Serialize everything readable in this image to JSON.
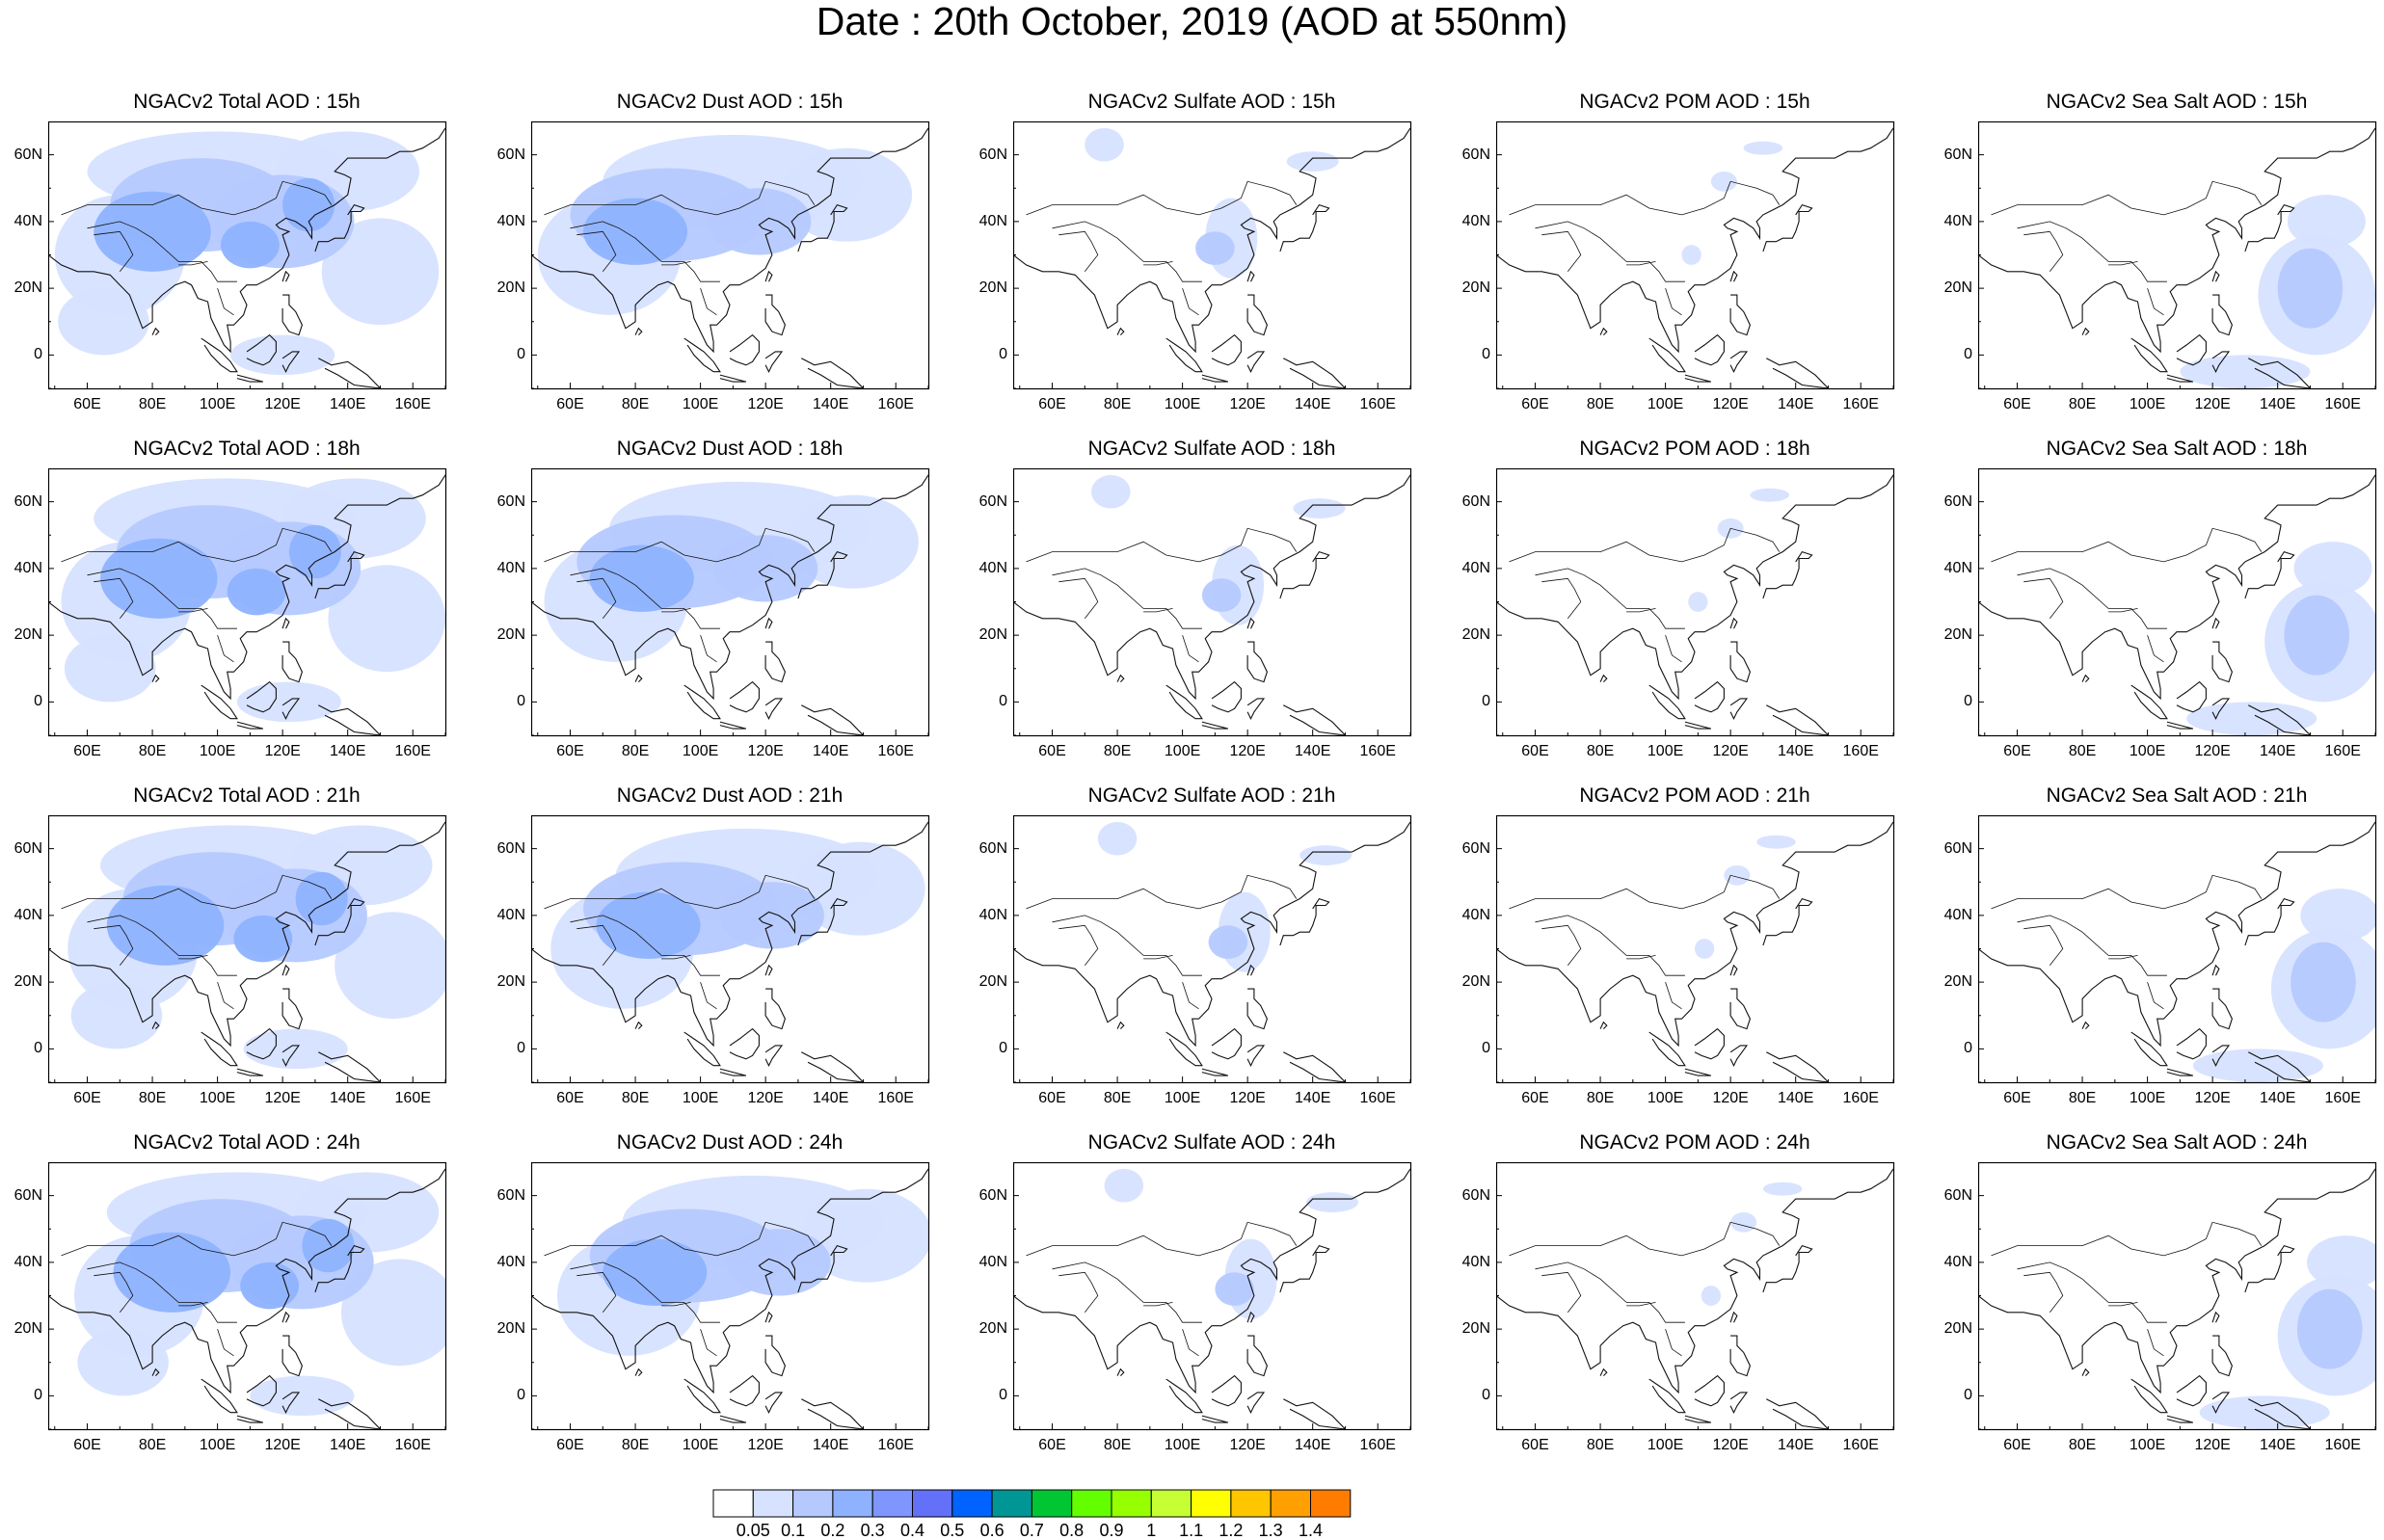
{
  "title": "Date : 20th October, 2019 (AOD at 550nm)",
  "map": {
    "lon_range": [
      48,
      170
    ],
    "lat_range": [
      -10,
      70
    ],
    "lon_ticks": [
      "60E",
      "80E",
      "100E",
      "120E",
      "140E",
      "160E"
    ],
    "lat_ticks": [
      "60N",
      "40N",
      "20N",
      "0"
    ]
  },
  "species": [
    {
      "id": "total",
      "label": "Total"
    },
    {
      "id": "dust",
      "label": "Dust"
    },
    {
      "id": "sulfate",
      "label": "Sulfate"
    },
    {
      "id": "pom",
      "label": "POM"
    },
    {
      "id": "seasalt",
      "label": "Sea Salt"
    }
  ],
  "hours": [
    "15h",
    "18h",
    "21h",
    "24h"
  ],
  "panels": [
    [
      "NGACv2 Total AOD : 15h",
      "NGACv2 Dust AOD : 15h",
      "NGACv2 Sulfate AOD : 15h",
      "NGACv2 POM AOD : 15h",
      "NGACv2 Sea Salt AOD : 15h"
    ],
    [
      "NGACv2 Total AOD : 18h",
      "NGACv2 Dust AOD : 18h",
      "NGACv2 Sulfate AOD : 18h",
      "NGACv2 POM AOD : 18h",
      "NGACv2 Sea Salt AOD : 18h"
    ],
    [
      "NGACv2 Total AOD : 21h",
      "NGACv2 Dust AOD : 21h",
      "NGACv2 Sulfate AOD : 21h",
      "NGACv2 POM AOD : 21h",
      "NGACv2 Sea Salt AOD : 21h"
    ],
    [
      "NGACv2 Total AOD : 24h",
      "NGACv2 Dust AOD : 24h",
      "NGACv2 Sulfate AOD : 24h",
      "NGACv2 POM AOD : 24h",
      "NGACv2 Sea Salt  AOD : 24h"
    ]
  ],
  "colorbar": {
    "labels": [
      "0.05",
      "0.1",
      "0.2",
      "0.3",
      "0.4",
      "0.5",
      "0.6",
      "0.7",
      "0.8",
      "0.9",
      "1",
      "1.1",
      "1.2",
      "1.3",
      "1.4"
    ],
    "colors": [
      "#ffffff",
      "#d6e2ff",
      "#b5c9ff",
      "#8eb2ff",
      "#7f96ff",
      "#6370f8",
      "#0063ff",
      "#009696",
      "#00c633",
      "#63ff00",
      "#96ff00",
      "#c6ff33",
      "#ffff00",
      "#ffc600",
      "#ffa000",
      "#ff7c00",
      "#ff1900"
    ]
  },
  "aod_fields": {
    "total": [
      {
        "lon": 80,
        "lat": 37,
        "rx": 18,
        "ry": 12,
        "level": 3
      },
      {
        "lon": 110,
        "lat": 33,
        "rx": 9,
        "ry": 7,
        "level": 3
      },
      {
        "lon": 128,
        "lat": 45,
        "rx": 8,
        "ry": 8,
        "level": 3
      },
      {
        "lon": 95,
        "lat": 45,
        "rx": 28,
        "ry": 14,
        "level": 2
      },
      {
        "lon": 120,
        "lat": 40,
        "rx": 22,
        "ry": 14,
        "level": 2
      },
      {
        "lon": 70,
        "lat": 30,
        "rx": 20,
        "ry": 18,
        "level": 1
      },
      {
        "lon": 100,
        "lat": 55,
        "rx": 40,
        "ry": 12,
        "level": 1
      },
      {
        "lon": 150,
        "lat": 25,
        "rx": 18,
        "ry": 16,
        "level": 1
      },
      {
        "lon": 140,
        "lat": 55,
        "rx": 22,
        "ry": 12,
        "level": 1
      },
      {
        "lon": 65,
        "lat": 10,
        "rx": 14,
        "ry": 10,
        "level": 1
      },
      {
        "lon": 120,
        "lat": 0,
        "rx": 16,
        "ry": 6,
        "level": 1
      }
    ],
    "dust": [
      {
        "lon": 80,
        "lat": 37,
        "rx": 16,
        "ry": 10,
        "level": 3
      },
      {
        "lon": 90,
        "lat": 42,
        "rx": 30,
        "ry": 14,
        "level": 2
      },
      {
        "lon": 118,
        "lat": 40,
        "rx": 16,
        "ry": 10,
        "level": 2
      },
      {
        "lon": 72,
        "lat": 30,
        "rx": 22,
        "ry": 18,
        "level": 1
      },
      {
        "lon": 110,
        "lat": 52,
        "rx": 40,
        "ry": 14,
        "level": 1
      },
      {
        "lon": 145,
        "lat": 48,
        "rx": 20,
        "ry": 14,
        "level": 1
      }
    ],
    "sulfate": [
      {
        "lon": 110,
        "lat": 32,
        "rx": 6,
        "ry": 5,
        "level": 2
      },
      {
        "lon": 115,
        "lat": 35,
        "rx": 8,
        "ry": 12,
        "level": 1
      },
      {
        "lon": 76,
        "lat": 63,
        "rx": 6,
        "ry": 5,
        "level": 1
      },
      {
        "lon": 140,
        "lat": 58,
        "rx": 8,
        "ry": 3,
        "level": 1
      }
    ],
    "pom": [
      {
        "lon": 108,
        "lat": 30,
        "rx": 3,
        "ry": 3,
        "level": 1
      },
      {
        "lon": 118,
        "lat": 52,
        "rx": 4,
        "ry": 3,
        "level": 1
      },
      {
        "lon": 130,
        "lat": 62,
        "rx": 6,
        "ry": 2,
        "level": 1
      }
    ],
    "seasalt": [
      {
        "lon": 150,
        "lat": 20,
        "rx": 10,
        "ry": 12,
        "level": 2
      },
      {
        "lon": 152,
        "lat": 18,
        "rx": 18,
        "ry": 18,
        "level": 1
      },
      {
        "lon": 155,
        "lat": 40,
        "rx": 12,
        "ry": 8,
        "level": 1
      },
      {
        "lon": 130,
        "lat": -5,
        "rx": 20,
        "ry": 5,
        "level": 1
      }
    ]
  }
}
